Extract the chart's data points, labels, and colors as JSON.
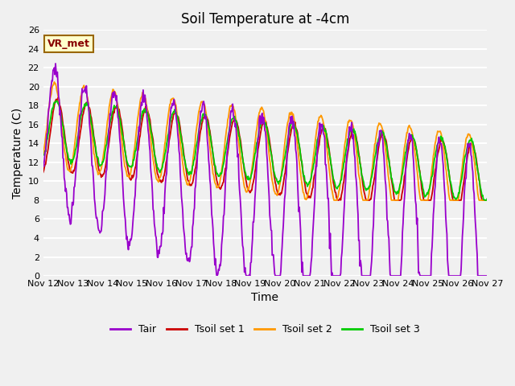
{
  "title": "Soil Temperature at -4cm",
  "xlabel": "Time",
  "ylabel": "Temperature (C)",
  "ylim": [
    0,
    26
  ],
  "colors": {
    "Tair": "#9900cc",
    "Tsoil1": "#cc0000",
    "Tsoil2": "#ff9900",
    "Tsoil3": "#00cc00"
  },
  "label_box_text": "VR_met",
  "label_box_facecolor": "#ffffcc",
  "label_box_edgecolor": "#996600",
  "legend_labels": [
    "Tair",
    "Tsoil set 1",
    "Tsoil set 2",
    "Tsoil set 3"
  ],
  "x_tick_labels": [
    "Nov 12",
    "Nov 13",
    "Nov 14",
    "Nov 15",
    "Nov 16",
    "Nov 17",
    "Nov 18",
    "Nov 19",
    "Nov 20",
    "Nov 21",
    "Nov 22",
    "Nov 23",
    "Nov 24",
    "Nov 25",
    "Nov 26",
    "Nov 27"
  ],
  "title_fontsize": 12,
  "axis_label_fontsize": 10,
  "tick_fontsize": 8,
  "legend_fontsize": 9,
  "fig_facecolor": "#f0f0f0",
  "ax_facecolor": "#f0f0f0",
  "grid_color": "#ffffff",
  "linewidth": 1.3
}
